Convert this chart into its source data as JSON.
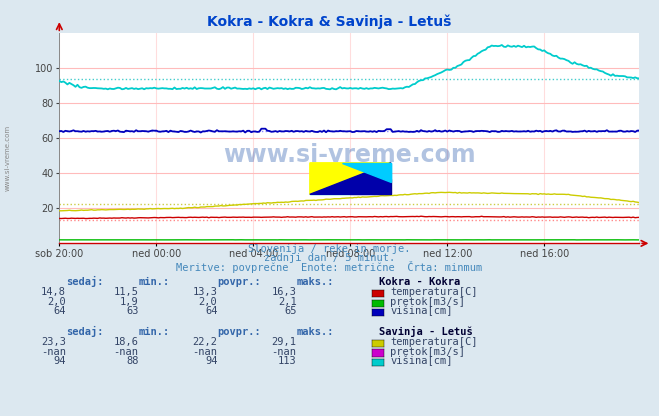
{
  "title": "Kokra - Kokra & Savinja - Letuš",
  "title_color": "#0044cc",
  "bg_color": "#dce8f0",
  "plot_bg_color": "#ffffff",
  "grid_h_color": "#ffbbbb",
  "grid_v_color": "#ffdddd",
  "x_labels": [
    "sob 20:00",
    "ned 00:00",
    "ned 04:00",
    "ned 08:00",
    "ned 12:00",
    "ned 16:00"
  ],
  "x_ticks": [
    0,
    48,
    96,
    144,
    192,
    240
  ],
  "x_max": 287,
  "y_min": 0,
  "y_max": 120,
  "y_ticks": [
    20,
    40,
    60,
    80,
    100
  ],
  "subtitle1": "Slovenija / reke in morje.",
  "subtitle2": "zadnji dan / 5 minut.",
  "subtitle3": "Meritve: povprečne  Enote: metrične  Črta: minmum",
  "subtitle_color": "#4488bb",
  "watermark": "www.si-vreme.com",
  "kokra_temp_color": "#cc0000",
  "kokra_temp_avg": 13.3,
  "kokra_flow_color": "#00bb00",
  "kokra_flow_avg": 2.0,
  "kokra_height_color": "#0000bb",
  "kokra_height_avg": 64,
  "savinja_temp_color": "#cccc00",
  "savinja_temp_avg": 22.2,
  "savinja_flow_color": "#cc00cc",
  "savinja_height_color": "#00cccc",
  "savinja_height_avg": 94,
  "avg_line_colors": {
    "kokra_temp": "#ff8888",
    "kokra_height": "#8888ff",
    "savinja_temp": "#cccc44",
    "savinja_height": "#44cccc"
  },
  "header_color": "#3366aa",
  "val_color": "#334466",
  "station1_name": "Kokra - Kokra",
  "station2_name": "Savinja - Letuš",
  "kokra_rows": [
    {
      "sedaj": "14,8",
      "min": "11,5",
      "povpr": "13,3",
      "maks": "16,3",
      "label": "temperatura[C]",
      "color": "#cc0000"
    },
    {
      "sedaj": "2,0",
      "min": "1,9",
      "povpr": "2,0",
      "maks": "2,1",
      "label": "pretok[m3/s]",
      "color": "#00bb00"
    },
    {
      "sedaj": "64",
      "min": "63",
      "povpr": "64",
      "maks": "65",
      "label": "višina[cm]",
      "color": "#0000bb"
    }
  ],
  "savinja_rows": [
    {
      "sedaj": "23,3",
      "min": "18,6",
      "povpr": "22,2",
      "maks": "29,1",
      "label": "temperatura[C]",
      "color": "#cccc00"
    },
    {
      "sedaj": "-nan",
      "min": "-nan",
      "povpr": "-nan",
      "maks": "-nan",
      "label": "pretok[m3/s]",
      "color": "#cc00cc"
    },
    {
      "sedaj": "94",
      "min": "88",
      "povpr": "94",
      "maks": "113",
      "label": "višina[cm]",
      "color": "#00cccc"
    }
  ]
}
